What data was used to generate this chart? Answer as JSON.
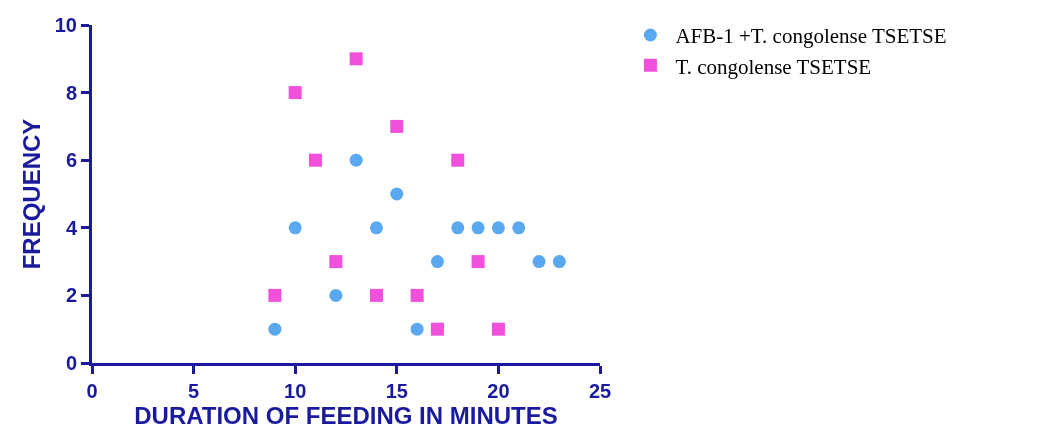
{
  "chart_data": {
    "type": "scatter",
    "xlabel": "DURATION OF FEEDING IN MINUTES",
    "ylabel": "FREQUENCY",
    "xlim": [
      0,
      25
    ],
    "xticks": [
      0,
      5,
      10,
      15,
      20,
      25
    ],
    "ylim": [
      0,
      10
    ],
    "yticks": [
      0,
      2,
      4,
      6,
      8,
      10
    ],
    "grid": false,
    "legend": "top right",
    "series": [
      {
        "name": "AFB-1 +T. congolense TSETSE",
        "color": "#5aa9f0",
        "marker": "circle",
        "x": [
          9,
          10,
          12,
          13,
          14,
          15,
          16,
          17,
          18,
          19,
          20,
          21,
          22,
          23
        ],
        "values": [
          1,
          4,
          2,
          6,
          4,
          5,
          1,
          3,
          4,
          4,
          4,
          4,
          3,
          3
        ]
      },
      {
        "name": "T. congolense TSETSE",
        "color": "#f050dc",
        "marker": "square",
        "x": [
          9,
          10,
          11,
          12,
          13,
          14,
          15,
          16,
          17,
          18,
          19,
          20
        ],
        "values": [
          2,
          8,
          6,
          3,
          9,
          2,
          7,
          2,
          1,
          6,
          3,
          1
        ]
      }
    ]
  }
}
